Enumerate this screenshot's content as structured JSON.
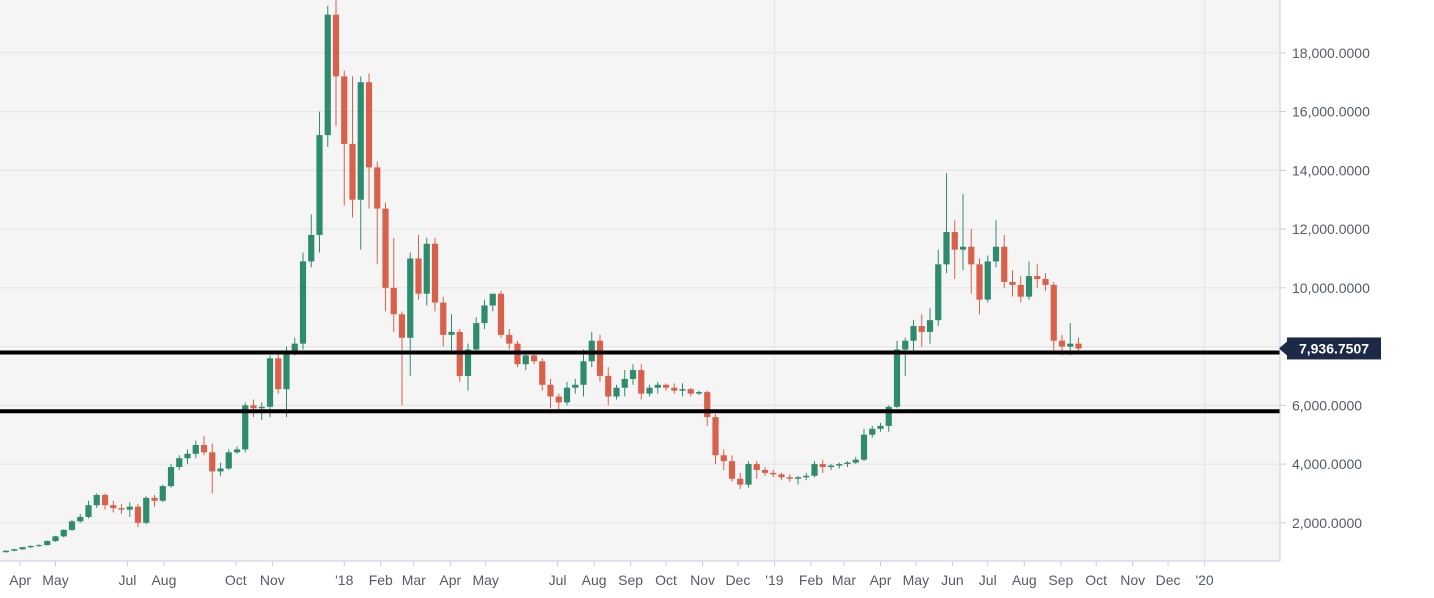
{
  "colors": {
    "plot_background": "#f5f5f5",
    "grid": "#e4e4e4",
    "axis_line": "#c8cbe0",
    "up": "#2e8b6e",
    "down": "#d9604a",
    "wick": "#6a6a6a",
    "support_line": "#000000",
    "price_tag_bg": "#1c2a47",
    "axis_text": "#555b66"
  },
  "chart_data": {
    "type": "candlestick",
    "interval": "weekly",
    "x_tick_labels": [
      "Apr",
      "May",
      "Jul",
      "Aug",
      "Oct",
      "Nov",
      "'18",
      "Feb",
      "Mar",
      "Apr",
      "May",
      "Jul",
      "Aug",
      "Sep",
      "Oct",
      "Nov",
      "Dec",
      "'19",
      "Feb",
      "Mar",
      "Apr",
      "May",
      "Jun",
      "Jul",
      "Aug",
      "Sep",
      "Oct",
      "Nov",
      "Dec",
      "'20"
    ],
    "y_tick_labels": [
      "2,000.0000",
      "4,000.0000",
      "6,000.0000",
      "8,000.0000",
      "10,000.0000",
      "12,000.0000",
      "14,000.0000",
      "16,000.0000",
      "18,000.0000"
    ],
    "y_ticks": [
      2000,
      4000,
      6000,
      8000,
      10000,
      12000,
      14000,
      16000,
      18000
    ],
    "ylim": [
      700,
      19800
    ],
    "current_price": "7,936.7507",
    "current_price_value": 7936.75,
    "horizontal_lines": [
      7800,
      5800
    ],
    "grid": true,
    "x_start": "2017-03-20",
    "candles": [
      [
        1000,
        1060,
        980,
        1050
      ],
      [
        1050,
        1120,
        1030,
        1100
      ],
      [
        1100,
        1180,
        1080,
        1170
      ],
      [
        1170,
        1230,
        1140,
        1210
      ],
      [
        1210,
        1270,
        1180,
        1240
      ],
      [
        1240,
        1400,
        1230,
        1380
      ],
      [
        1380,
        1560,
        1350,
        1540
      ],
      [
        1540,
        1780,
        1500,
        1760
      ],
      [
        1760,
        2100,
        1720,
        2050
      ],
      [
        2050,
        2300,
        2000,
        2200
      ],
      [
        2200,
        2750,
        2150,
        2600
      ],
      [
        2600,
        3000,
        2500,
        2950
      ],
      [
        2950,
        3000,
        2450,
        2600
      ],
      [
        2600,
        2750,
        2350,
        2500
      ],
      [
        2500,
        2650,
        2300,
        2450
      ],
      [
        2450,
        2700,
        2200,
        2550
      ],
      [
        2550,
        2650,
        1850,
        2000
      ],
      [
        2000,
        2900,
        1950,
        2850
      ],
      [
        2850,
        2950,
        2550,
        2750
      ],
      [
        2750,
        3300,
        2700,
        3250
      ],
      [
        3250,
        4000,
        3200,
        3900
      ],
      [
        3900,
        4300,
        3800,
        4200
      ],
      [
        4200,
        4500,
        4000,
        4350
      ],
      [
        4350,
        4800,
        4200,
        4650
      ],
      [
        4650,
        4950,
        4300,
        4400
      ],
      [
        4400,
        4700,
        3000,
        3750
      ],
      [
        3750,
        4050,
        3600,
        3850
      ],
      [
        3850,
        4500,
        3800,
        4400
      ],
      [
        4400,
        4600,
        4350,
        4500
      ],
      [
        4500,
        6100,
        4400,
        6000
      ],
      [
        6000,
        6200,
        5600,
        5900
      ],
      [
        5900,
        6100,
        5500,
        5950
      ],
      [
        5950,
        7700,
        5600,
        7600
      ],
      [
        7600,
        7800,
        6400,
        6550
      ],
      [
        6550,
        8000,
        5600,
        7800
      ],
      [
        7800,
        8300,
        7700,
        8100
      ],
      [
        8100,
        11200,
        7900,
        10900
      ],
      [
        10900,
        12500,
        10700,
        11800
      ],
      [
        11800,
        16000,
        11200,
        15200
      ],
      [
        15200,
        19600,
        14800,
        19300
      ],
      [
        19300,
        19800,
        15500,
        17200
      ],
      [
        17200,
        17400,
        12800,
        14900
      ],
      [
        14900,
        17200,
        12400,
        13000
      ],
      [
        13000,
        17200,
        11300,
        17000
      ],
      [
        17000,
        17300,
        12700,
        14100
      ],
      [
        14100,
        14300,
        10800,
        12700
      ],
      [
        12700,
        12900,
        9200,
        10000
      ],
      [
        10000,
        11700,
        8500,
        9100
      ],
      [
        9100,
        9200,
        6000,
        8300
      ],
      [
        8300,
        11200,
        7000,
        11000
      ],
      [
        11000,
        11800,
        9600,
        9800
      ],
      [
        9800,
        11700,
        9400,
        11500
      ],
      [
        11500,
        11700,
        9200,
        9500
      ],
      [
        9500,
        9700,
        8000,
        8400
      ],
      [
        8400,
        9100,
        7800,
        8500
      ],
      [
        8500,
        8600,
        6800,
        7000
      ],
      [
        7000,
        8100,
        6500,
        7900
      ],
      [
        7900,
        9000,
        7800,
        8800
      ],
      [
        8800,
        9600,
        8600,
        9400
      ],
      [
        9400,
        9800,
        9200,
        9800
      ],
      [
        9800,
        9900,
        8300,
        8400
      ],
      [
        8400,
        8600,
        7900,
        8100
      ],
      [
        8100,
        8200,
        7300,
        7400
      ],
      [
        7400,
        7800,
        7200,
        7700
      ],
      [
        7700,
        7750,
        7400,
        7500
      ],
      [
        7500,
        7600,
        6500,
        6700
      ],
      [
        6700,
        6900,
        5900,
        6300
      ],
      [
        6300,
        6400,
        5800,
        6100
      ],
      [
        6100,
        6800,
        6000,
        6600
      ],
      [
        6600,
        6900,
        6400,
        6700
      ],
      [
        6700,
        7900,
        6300,
        7500
      ],
      [
        7500,
        8500,
        7300,
        8200
      ],
      [
        8200,
        8400,
        6800,
        7000
      ],
      [
        7000,
        7300,
        6000,
        6300
      ],
      [
        6300,
        6700,
        6200,
        6600
      ],
      [
        6600,
        7200,
        6300,
        6900
      ],
      [
        6900,
        7400,
        6700,
        7200
      ],
      [
        7200,
        7400,
        6200,
        6400
      ],
      [
        6400,
        6700,
        6300,
        6600
      ],
      [
        6600,
        6800,
        6400,
        6700
      ],
      [
        6700,
        6750,
        6500,
        6600
      ],
      [
        6600,
        6750,
        6400,
        6500
      ],
      [
        6500,
        6750,
        6300,
        6550
      ],
      [
        6550,
        6600,
        6300,
        6400
      ],
      [
        6400,
        6500,
        6350,
        6450
      ],
      [
        6450,
        6500,
        5300,
        5600
      ],
      [
        5600,
        5700,
        4000,
        4300
      ],
      [
        4300,
        4500,
        3800,
        4100
      ],
      [
        4100,
        4300,
        3400,
        3500
      ],
      [
        3500,
        3700,
        3150,
        3300
      ],
      [
        3300,
        4100,
        3200,
        4000
      ],
      [
        4000,
        4100,
        3500,
        3800
      ],
      [
        3800,
        3900,
        3600,
        3700
      ],
      [
        3700,
        3800,
        3550,
        3650
      ],
      [
        3650,
        3700,
        3450,
        3550
      ],
      [
        3550,
        3650,
        3400,
        3500
      ],
      [
        3500,
        3600,
        3300,
        3550
      ],
      [
        3550,
        3700,
        3450,
        3600
      ],
      [
        3600,
        4100,
        3550,
        4000
      ],
      [
        4000,
        4150,
        3700,
        3900
      ],
      [
        3900,
        4000,
        3800,
        3950
      ],
      [
        3950,
        4050,
        3850,
        4000
      ],
      [
        4000,
        4100,
        3900,
        4050
      ],
      [
        4050,
        4250,
        4000,
        4150
      ],
      [
        4150,
        5200,
        4100,
        5000
      ],
      [
        5000,
        5300,
        4900,
        5200
      ],
      [
        5200,
        5400,
        5100,
        5300
      ],
      [
        5300,
        6000,
        5100,
        5950
      ],
      [
        5950,
        8200,
        5900,
        7900
      ],
      [
        7900,
        8300,
        7000,
        8200
      ],
      [
        8200,
        8900,
        7800,
        8700
      ],
      [
        8700,
        9100,
        8000,
        8500
      ],
      [
        8500,
        9300,
        8100,
        8900
      ],
      [
        8900,
        11300,
        8700,
        10800
      ],
      [
        10800,
        13900,
        10500,
        11900
      ],
      [
        11900,
        12300,
        10300,
        11300
      ],
      [
        11300,
        13200,
        10600,
        11400
      ],
      [
        11400,
        12000,
        9800,
        10800
      ],
      [
        10800,
        11000,
        9100,
        9600
      ],
      [
        9600,
        11100,
        9500,
        10900
      ],
      [
        10900,
        12300,
        10700,
        11400
      ],
      [
        11400,
        11800,
        10000,
        10200
      ],
      [
        10200,
        10600,
        9700,
        10100
      ],
      [
        10100,
        10400,
        9500,
        9700
      ],
      [
        9700,
        10900,
        9600,
        10400
      ],
      [
        10400,
        10800,
        10000,
        10300
      ],
      [
        10300,
        10500,
        9900,
        10100
      ],
      [
        10100,
        10200,
        7800,
        8200
      ],
      [
        8200,
        8400,
        7700,
        8000
      ],
      [
        8000,
        8800,
        7700,
        8100
      ],
      [
        8100,
        8300,
        7800,
        7936.75
      ]
    ]
  }
}
